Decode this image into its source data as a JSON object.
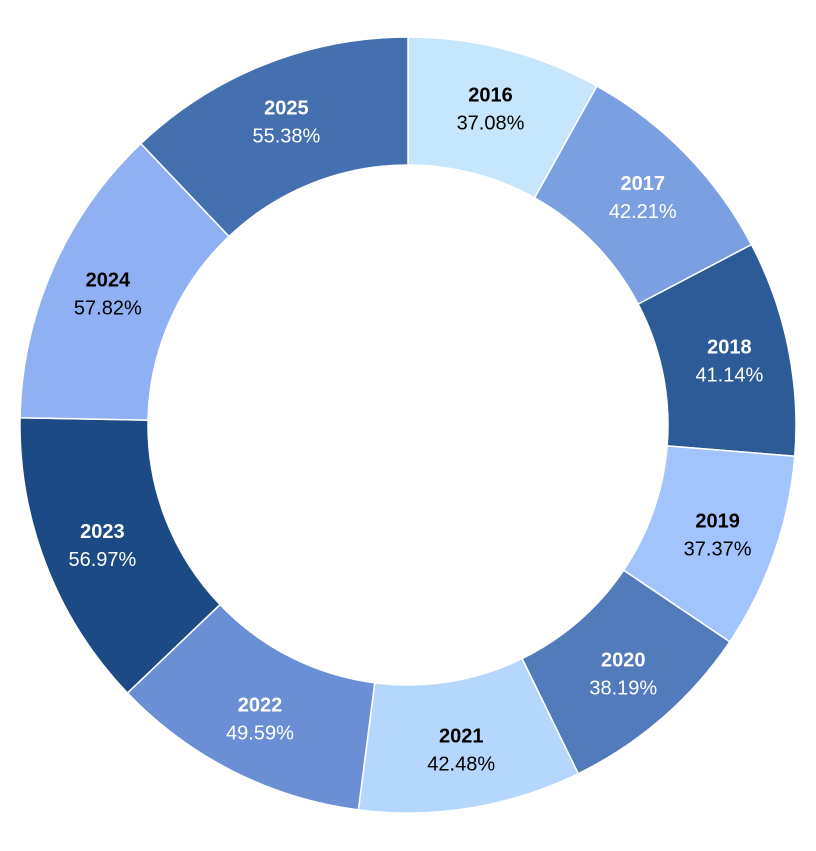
{
  "chart_data": {
    "type": "pie",
    "donut": true,
    "categories": [
      "2016",
      "2017",
      "2018",
      "2019",
      "2020",
      "2021",
      "2022",
      "2023",
      "2024",
      "2025"
    ],
    "values": [
      37.08,
      42.21,
      41.14,
      37.37,
      38.19,
      42.48,
      49.59,
      56.97,
      57.82,
      55.38
    ],
    "value_labels": [
      "37.08%",
      "42.21%",
      "41.14%",
      "37.37%",
      "38.19%",
      "42.48%",
      "49.59%",
      "56.97%",
      "57.82%",
      "55.38%"
    ],
    "colors": [
      "#c5e6fd",
      "#7aa0e1",
      "#2d5b97",
      "#a2c4fd",
      "#527bbb",
      "#b5d7fd",
      "#6a8fd4",
      "#1c4a85",
      "#8fb0f3",
      "#4570af"
    ],
    "label_colors": [
      "#000000",
      "#ffffff",
      "#ffffff",
      "#000000",
      "#ffffff",
      "#000000",
      "#ffffff",
      "#ffffff",
      "#000000",
      "#ffffff"
    ],
    "start": "top",
    "direction": "clockwise",
    "legend": "none",
    "title": "",
    "xlabel": "",
    "ylabel": ""
  }
}
